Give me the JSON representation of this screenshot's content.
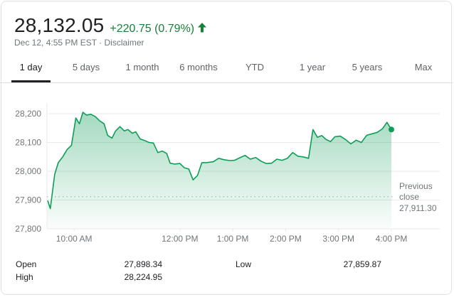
{
  "header": {
    "price": "28,132.05",
    "change": "+220.75 (0.79%)",
    "meta": "Dec 12, 4:55 PM EST · Disclaimer"
  },
  "tabs": [
    {
      "label": "1 day",
      "active": true
    },
    {
      "label": "5 days",
      "active": false
    },
    {
      "label": "1 month",
      "active": false
    },
    {
      "label": "6 months",
      "active": false
    },
    {
      "label": "YTD",
      "active": false
    },
    {
      "label": "1 year",
      "active": false
    },
    {
      "label": "5 years",
      "active": false
    },
    {
      "label": "Max",
      "active": false
    }
  ],
  "colors": {
    "positive": "#188038",
    "line": "#0f9d58",
    "axis_text": "#70757a",
    "grid": "#e8eaed",
    "baseline": "#9aa0a6"
  },
  "stats": {
    "open_label": "Open",
    "open_value": "27,898.34",
    "high_label": "High",
    "high_value": "28,224.95",
    "low_label": "Low",
    "low_value": "27,859.87"
  },
  "chart_data": {
    "type": "area",
    "title": "",
    "xlabel": "",
    "ylabel": "",
    "ylim": [
      27800,
      28250
    ],
    "y_ticks": [
      {
        "value": 27800,
        "label": "27,800"
      },
      {
        "value": 27900,
        "label": "27,900"
      },
      {
        "value": 28000,
        "label": "28,000"
      },
      {
        "value": 28100,
        "label": "28,100"
      },
      {
        "value": 28200,
        "label": "28,200"
      }
    ],
    "xlim": [
      "9:30",
      "16:00"
    ],
    "x_ticks": [
      {
        "time": "10:00",
        "label": "10:00 AM"
      },
      {
        "time": "12:00",
        "label": "12:00 PM"
      },
      {
        "time": "13:00",
        "label": "1:00 PM"
      },
      {
        "time": "14:00",
        "label": "2:00 PM"
      },
      {
        "time": "15:00",
        "label": "3:00 PM"
      },
      {
        "time": "16:00",
        "label": "4:00 PM"
      }
    ],
    "previous_close": {
      "value": 27911.3,
      "label_line1": "Previous",
      "label_line2": "close",
      "value_label": "27,911.30"
    },
    "grid": true,
    "series": [
      {
        "points": [
          [
            "9:30",
            27898
          ],
          [
            "9:33",
            27870
          ],
          [
            "9:38",
            27990
          ],
          [
            "9:42",
            28030
          ],
          [
            "9:47",
            28050
          ],
          [
            "9:52",
            28075
          ],
          [
            "9:57",
            28090
          ],
          [
            "10:02",
            28185
          ],
          [
            "10:06",
            28165
          ],
          [
            "10:10",
            28205
          ],
          [
            "10:14",
            28195
          ],
          [
            "10:19",
            28198
          ],
          [
            "10:24",
            28190
          ],
          [
            "10:29",
            28175
          ],
          [
            "10:34",
            28165
          ],
          [
            "10:38",
            28125
          ],
          [
            "10:43",
            28115
          ],
          [
            "10:47",
            28140
          ],
          [
            "10:52",
            28155
          ],
          [
            "10:57",
            28140
          ],
          [
            "11:01",
            28145
          ],
          [
            "11:06",
            28132
          ],
          [
            "11:10",
            28137
          ],
          [
            "11:15",
            28112
          ],
          [
            "11:20",
            28107
          ],
          [
            "11:25",
            28100
          ],
          [
            "11:30",
            28098
          ],
          [
            "11:35",
            28065
          ],
          [
            "11:40",
            28070
          ],
          [
            "11:45",
            28062
          ],
          [
            "11:49",
            28028
          ],
          [
            "11:54",
            28025
          ],
          [
            "12:00",
            28027
          ],
          [
            "12:05",
            28012
          ],
          [
            "12:10",
            28008
          ],
          [
            "12:15",
            27970
          ],
          [
            "12:20",
            27985
          ],
          [
            "12:25",
            28030
          ],
          [
            "12:30",
            28030
          ],
          [
            "12:38",
            28033
          ],
          [
            "12:44",
            28045
          ],
          [
            "12:50",
            28040
          ],
          [
            "12:57",
            28037
          ],
          [
            "13:02",
            28038
          ],
          [
            "13:08",
            28047
          ],
          [
            "13:14",
            28055
          ],
          [
            "13:20",
            28042
          ],
          [
            "13:26",
            28048
          ],
          [
            "13:32",
            28035
          ],
          [
            "13:38",
            28027
          ],
          [
            "13:44",
            28028
          ],
          [
            "13:50",
            28042
          ],
          [
            "13:56",
            28038
          ],
          [
            "14:02",
            28045
          ],
          [
            "14:08",
            28065
          ],
          [
            "14:14",
            28052
          ],
          [
            "14:20",
            28050
          ],
          [
            "14:26",
            28045
          ],
          [
            "14:31",
            28145
          ],
          [
            "14:36",
            28118
          ],
          [
            "14:41",
            28124
          ],
          [
            "14:46",
            28110
          ],
          [
            "14:51",
            28103
          ],
          [
            "14:56",
            28120
          ],
          [
            "15:02",
            28122
          ],
          [
            "15:08",
            28110
          ],
          [
            "15:14",
            28095
          ],
          [
            "15:20",
            28108
          ],
          [
            "15:26",
            28100
          ],
          [
            "15:32",
            28125
          ],
          [
            "15:38",
            28130
          ],
          [
            "15:44",
            28135
          ],
          [
            "15:50",
            28148
          ],
          [
            "15:55",
            28170
          ],
          [
            "16:00",
            28145
          ]
        ]
      }
    ]
  }
}
